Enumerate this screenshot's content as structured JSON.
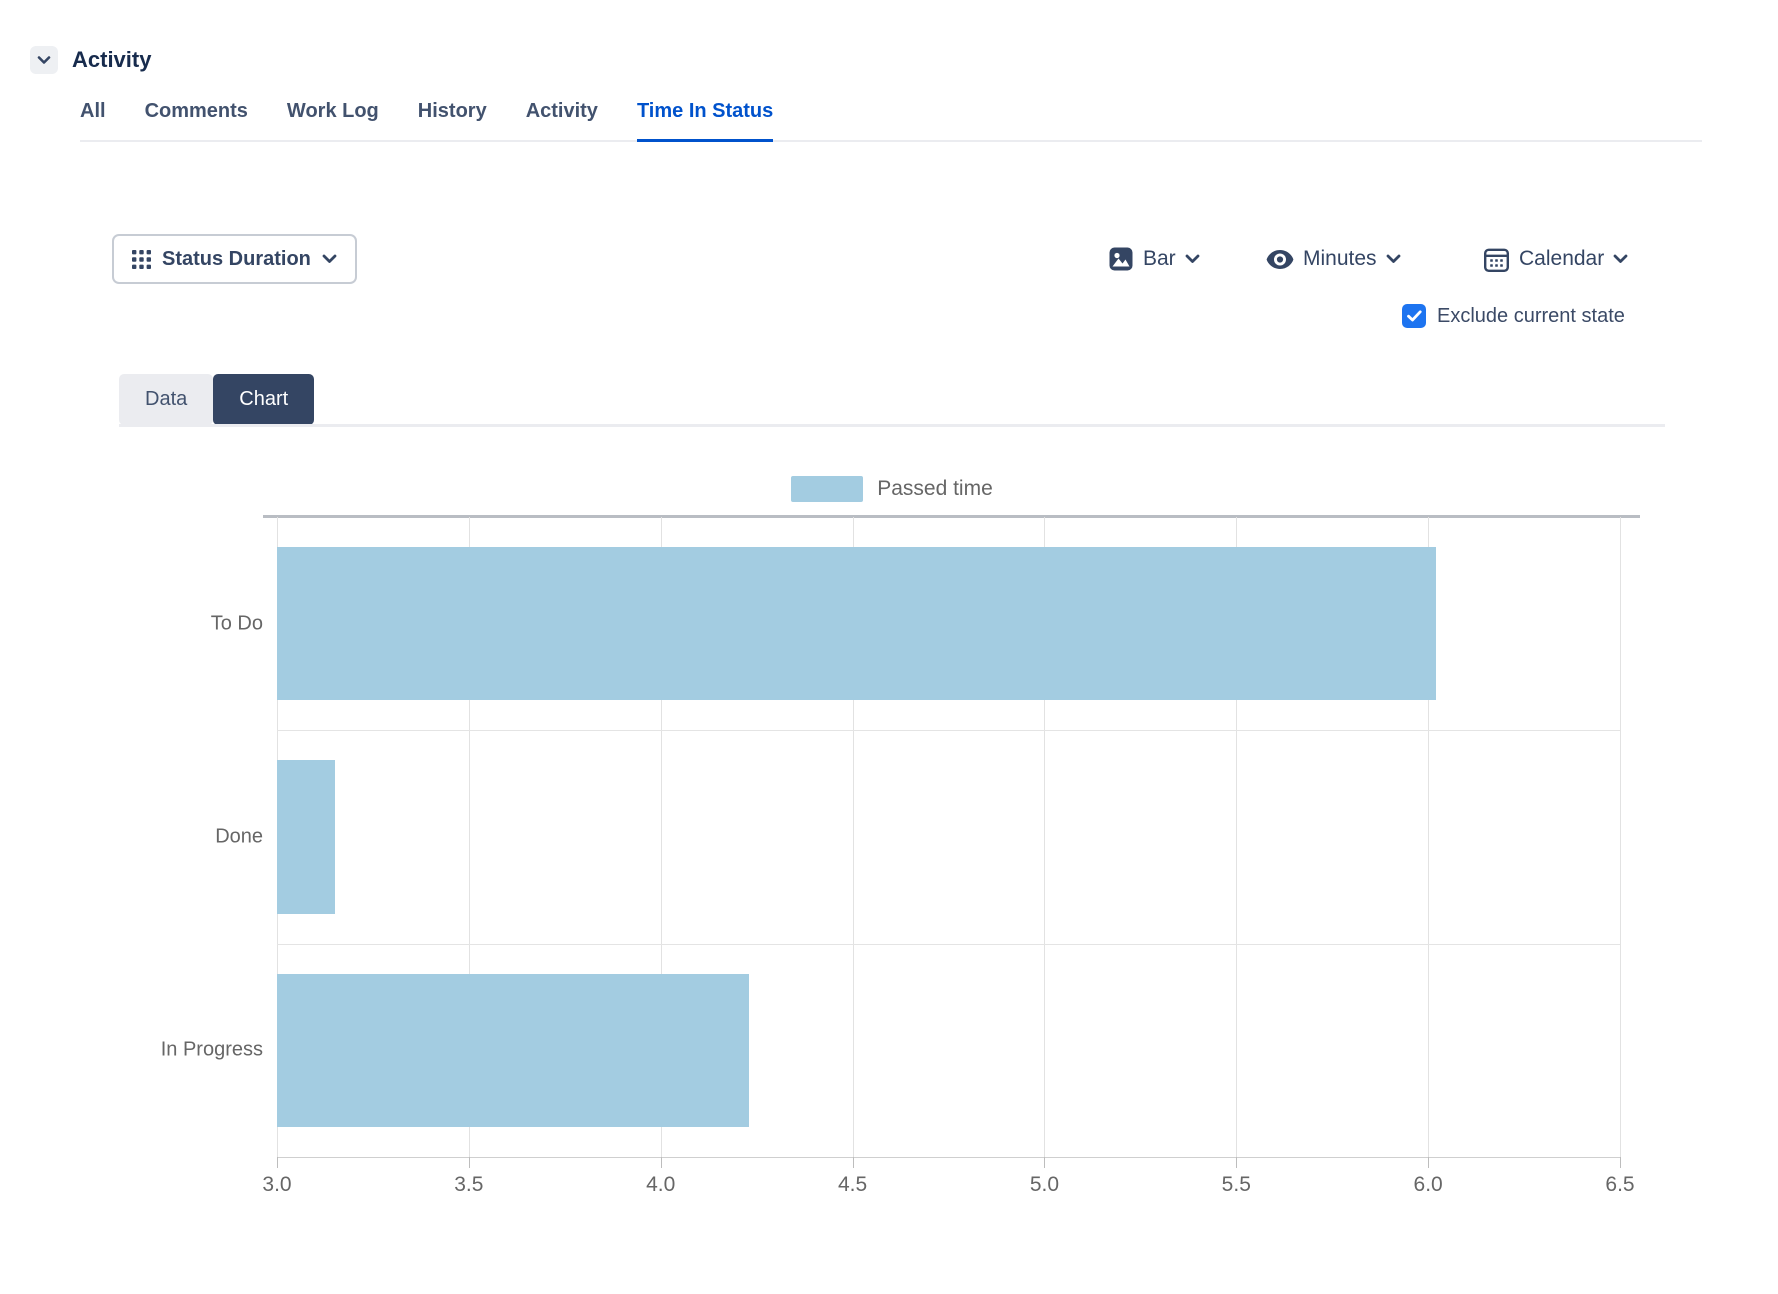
{
  "header": {
    "title": "Activity"
  },
  "tabs": [
    {
      "label": "All",
      "active": false
    },
    {
      "label": "Comments",
      "active": false
    },
    {
      "label": "Work Log",
      "active": false
    },
    {
      "label": "History",
      "active": false
    },
    {
      "label": "Activity",
      "active": false
    },
    {
      "label": "Time In Status",
      "active": true
    }
  ],
  "controls": {
    "report_type": {
      "label": "Status Duration"
    },
    "chart_type": {
      "label": "Bar"
    },
    "unit": {
      "label": "Minutes"
    },
    "calendar": {
      "label": "Calendar"
    },
    "exclude_current_state": {
      "label": "Exclude current state",
      "checked": true
    }
  },
  "view_toggle": {
    "data_label": "Data",
    "chart_label": "Chart",
    "active": "Chart"
  },
  "chart_data": {
    "type": "bar",
    "orientation": "horizontal",
    "title": "",
    "xlabel": "",
    "ylabel": "",
    "categories": [
      "To Do",
      "Done",
      "In Progress"
    ],
    "series": [
      {
        "name": "Passed time",
        "values": [
          6.02,
          3.15,
          4.23
        ]
      }
    ],
    "xlim": [
      3.0,
      6.5
    ],
    "xticks": [
      3.0,
      3.5,
      4.0,
      4.5,
      5.0,
      5.5,
      6.0,
      6.5
    ],
    "grid": true,
    "legend_position": "top-center",
    "bar_color": "#a3cce1"
  },
  "colors": {
    "accent_blue": "#0052CC",
    "checkbox_blue": "#1d74f0",
    "navy_text": "#344563",
    "bar_fill": "#a3cce1",
    "muted_text": "#666666"
  }
}
